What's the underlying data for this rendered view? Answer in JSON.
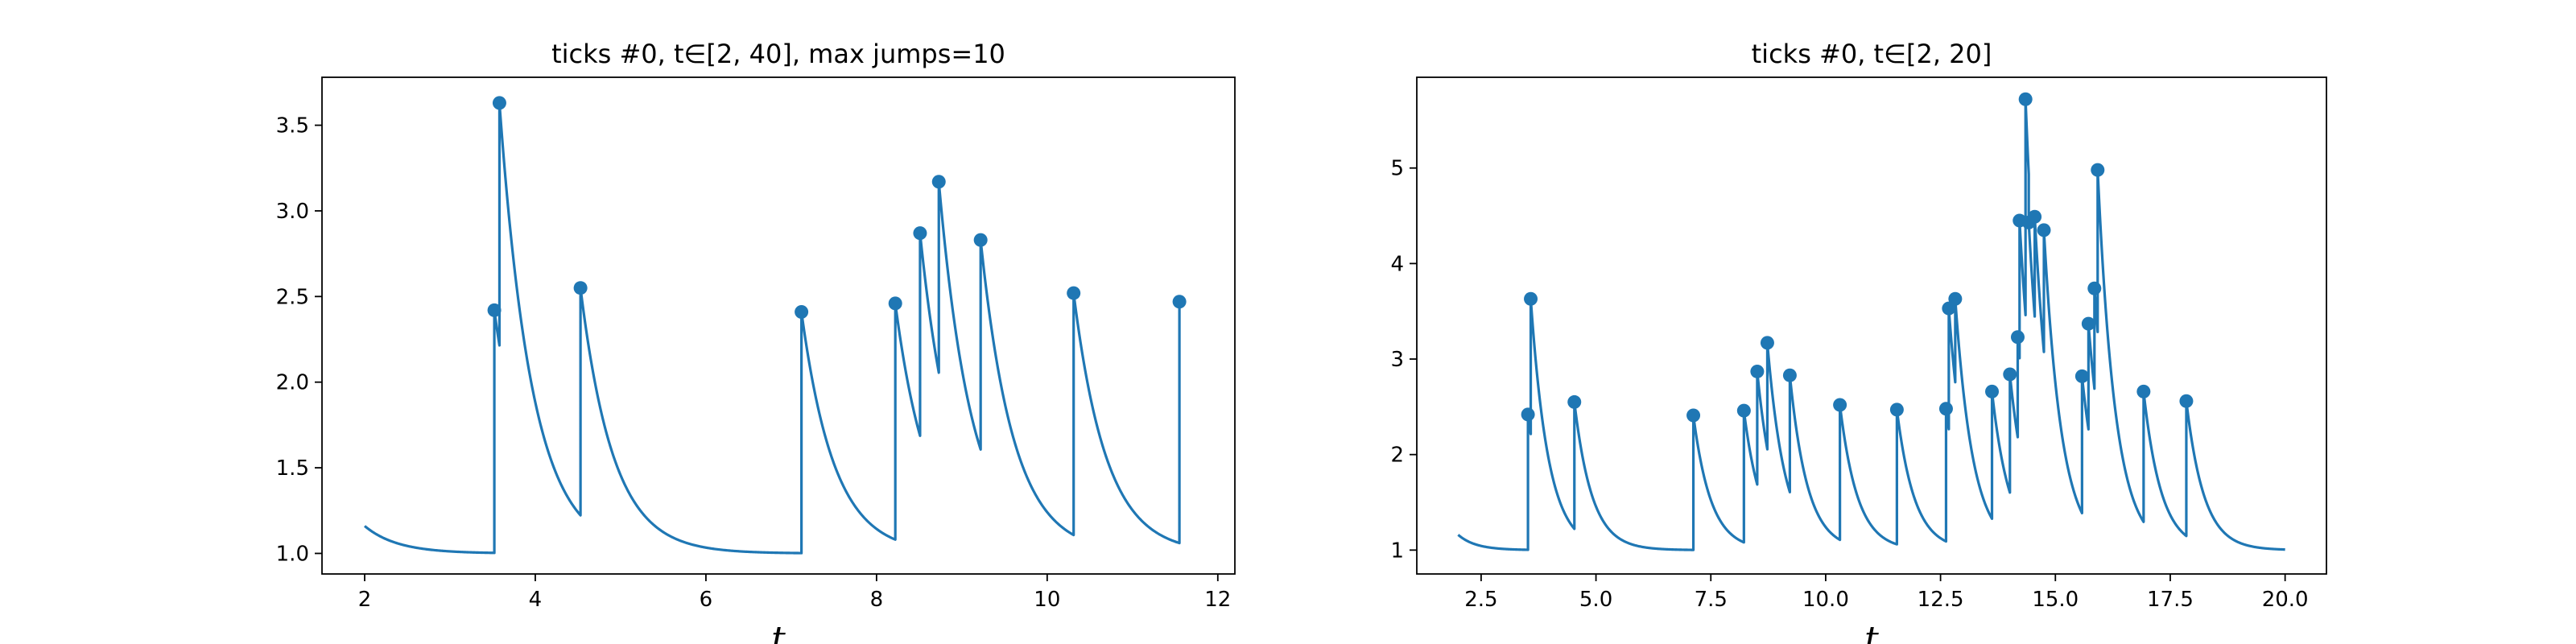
{
  "colors": {
    "series": "#1f77b4",
    "axes": "#000000",
    "background": "#ffffff"
  },
  "chart_data": [
    {
      "type": "line",
      "title": "ticks #0, t∈[2, 40], max jumps=10",
      "xlabel": "t",
      "ylabel": "",
      "xlim": [
        1.5,
        12.2
      ],
      "ylim": [
        0.88,
        3.78
      ],
      "xticks": [
        2,
        4,
        6,
        8,
        10,
        12
      ],
      "yticks": [
        1.0,
        1.5,
        2.0,
        2.5,
        3.0,
        3.5
      ],
      "xtick_labels": [
        "2",
        "4",
        "6",
        "8",
        "10",
        "12"
      ],
      "ytick_labels": [
        "1.0",
        "1.5",
        "2.0",
        "2.5",
        "3.0",
        "3.5"
      ],
      "grid": false,
      "x_end": 11.55,
      "jumps": [
        {
          "t": 3.52,
          "y": 2.42
        },
        {
          "t": 3.58,
          "y": 3.63
        },
        {
          "t": 4.53,
          "y": 2.55
        },
        {
          "t": 7.12,
          "y": 2.41
        },
        {
          "t": 8.22,
          "y": 2.46
        },
        {
          "t": 8.51,
          "y": 2.87
        },
        {
          "t": 8.73,
          "y": 3.17
        },
        {
          "t": 9.22,
          "y": 2.83
        },
        {
          "t": 10.31,
          "y": 2.52
        },
        {
          "t": 11.55,
          "y": 2.47
        }
      ]
    },
    {
      "type": "line",
      "title": "ticks #0, t∈[2, 20]",
      "xlabel": "t",
      "ylabel": "",
      "xlim": [
        1.1,
        20.9
      ],
      "ylim": [
        0.75,
        5.95
      ],
      "xticks": [
        2.5,
        5.0,
        7.5,
        10.0,
        12.5,
        15.0,
        17.5,
        20.0
      ],
      "yticks": [
        1,
        2,
        3,
        4,
        5
      ],
      "xtick_labels": [
        "2.5",
        "5.0",
        "7.5",
        "10.0",
        "12.5",
        "15.0",
        "17.5",
        "20.0"
      ],
      "ytick_labels": [
        "1",
        "2",
        "3",
        "4",
        "5"
      ],
      "grid": false,
      "x_end": 20.0,
      "jumps": [
        {
          "t": 3.52,
          "y": 2.42
        },
        {
          "t": 3.58,
          "y": 3.63
        },
        {
          "t": 4.53,
          "y": 2.55
        },
        {
          "t": 7.12,
          "y": 2.41
        },
        {
          "t": 8.22,
          "y": 2.46
        },
        {
          "t": 8.51,
          "y": 2.87
        },
        {
          "t": 8.73,
          "y": 3.17
        },
        {
          "t": 9.22,
          "y": 2.83
        },
        {
          "t": 10.31,
          "y": 2.52
        },
        {
          "t": 11.55,
          "y": 2.47
        },
        {
          "t": 12.62,
          "y": 2.48
        },
        {
          "t": 12.68,
          "y": 3.53
        },
        {
          "t": 12.82,
          "y": 3.63
        },
        {
          "t": 13.62,
          "y": 2.66
        },
        {
          "t": 14.01,
          "y": 2.84
        },
        {
          "t": 14.18,
          "y": 3.23
        },
        {
          "t": 14.22,
          "y": 4.45
        },
        {
          "t": 14.35,
          "y": 5.72
        },
        {
          "t": 14.42,
          "y": 4.43
        },
        {
          "t": 14.55,
          "y": 4.49
        },
        {
          "t": 14.75,
          "y": 4.35
        },
        {
          "t": 15.58,
          "y": 2.82
        },
        {
          "t": 15.72,
          "y": 3.37
        },
        {
          "t": 15.85,
          "y": 3.74
        },
        {
          "t": 15.92,
          "y": 4.98
        },
        {
          "t": 16.92,
          "y": 2.66
        },
        {
          "t": 17.85,
          "y": 2.56
        }
      ]
    }
  ]
}
